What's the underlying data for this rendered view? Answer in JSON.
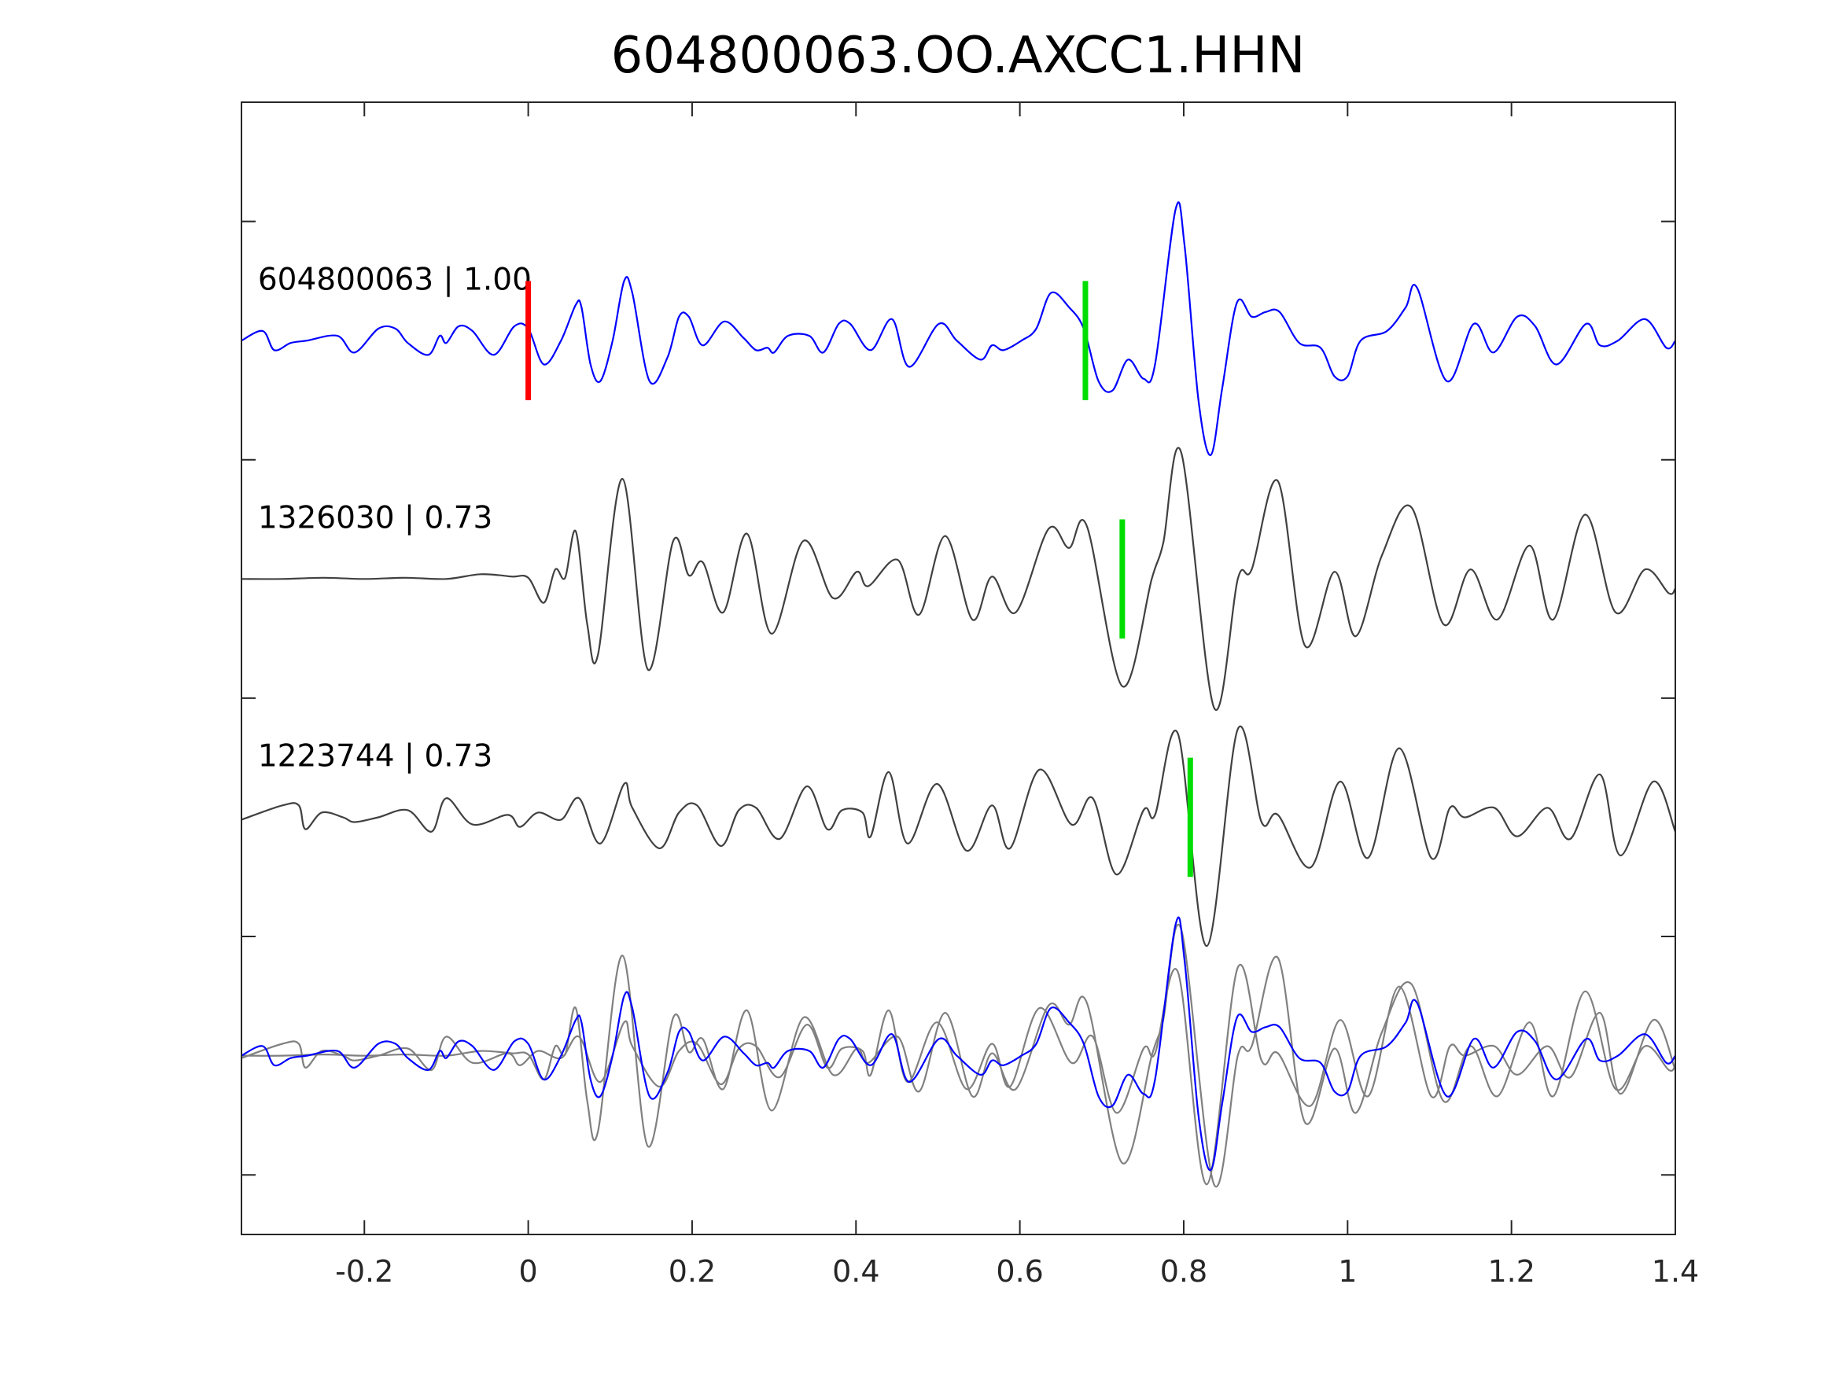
{
  "chart_data": {
    "type": "line",
    "title": "604800063.OO.AXCC1.HHN",
    "xlabel": "",
    "ylabel": "",
    "xlim": [
      -0.35,
      1.4
    ],
    "ylim": [
      -3.75,
      1.0
    ],
    "xticks": [
      -0.2,
      0,
      0.2,
      0.4,
      0.6,
      0.8,
      1,
      1.2,
      1.4
    ],
    "xtick_labels": [
      "-0.2",
      "0",
      "0.2",
      "0.4",
      "0.6",
      "0.8",
      "1",
      "1.2",
      "1.4"
    ],
    "yticks": [
      0.5,
      -0.5,
      -1.5,
      -2.5,
      -3.5
    ],
    "grid": false,
    "colors": {
      "template": "#0000ff",
      "match": "#404040",
      "overlay_match": "#808080",
      "pick_p": "#ff0000",
      "pick_s": "#00dd00"
    },
    "series": [
      {
        "name": "604800063",
        "label": "604800063 | 1.00",
        "offset": 0,
        "role": "template",
        "picks": [
          {
            "t": 0,
            "color": "#ff0000"
          },
          {
            "t": 0.68,
            "color": "#00dd00"
          }
        ],
        "points": [
          [
            -0.35,
            0
          ],
          [
            -0.324,
            0.04
          ],
          [
            -0.31,
            -0.04
          ],
          [
            -0.29,
            -0.01
          ],
          [
            -0.27,
            0
          ],
          [
            -0.233,
            0.02
          ],
          [
            -0.212,
            -0.05
          ],
          [
            -0.183,
            0.05
          ],
          [
            -0.162,
            0.05
          ],
          [
            -0.147,
            -0.01
          ],
          [
            -0.122,
            -0.06
          ],
          [
            -0.108,
            0.02
          ],
          [
            -0.1,
            -0.01
          ],
          [
            -0.085,
            0.06
          ],
          [
            -0.068,
            0.04
          ],
          [
            -0.042,
            -0.06
          ],
          [
            -0.017,
            0.06
          ],
          [
            0,
            0.05
          ],
          [
            0.019,
            -0.1
          ],
          [
            0.04,
            0
          ],
          [
            0.058,
            0.15
          ],
          [
            0.065,
            0.14
          ],
          [
            0.076,
            -0.1
          ],
          [
            0.088,
            -0.17
          ],
          [
            0.103,
            0
          ],
          [
            0.117,
            0.25
          ],
          [
            0.127,
            0.2
          ],
          [
            0.148,
            -0.17
          ],
          [
            0.17,
            -0.07
          ],
          [
            0.184,
            0.1
          ],
          [
            0.196,
            0.1
          ],
          [
            0.213,
            -0.02
          ],
          [
            0.239,
            0.08
          ],
          [
            0.263,
            0.01
          ],
          [
            0.278,
            -0.04
          ],
          [
            0.292,
            -0.03
          ],
          [
            0.3,
            -0.05
          ],
          [
            0.317,
            0.02
          ],
          [
            0.343,
            0.02
          ],
          [
            0.36,
            -0.05
          ],
          [
            0.379,
            0.07
          ],
          [
            0.393,
            0.07
          ],
          [
            0.418,
            -0.04
          ],
          [
            0.444,
            0.09
          ],
          [
            0.465,
            -0.11
          ],
          [
            0.501,
            0.07
          ],
          [
            0.523,
            0
          ],
          [
            0.552,
            -0.08
          ],
          [
            0.566,
            -0.02
          ],
          [
            0.58,
            -0.04
          ],
          [
            0.602,
            0
          ],
          [
            0.62,
            0.05
          ],
          [
            0.638,
            0.2
          ],
          [
            0.66,
            0.14
          ],
          [
            0.678,
            0.05
          ],
          [
            0.696,
            -0.17
          ],
          [
            0.713,
            -0.21
          ],
          [
            0.732,
            -0.08
          ],
          [
            0.751,
            -0.16
          ],
          [
            0.765,
            -0.1
          ],
          [
            0.79,
            0.55
          ],
          [
            0.801,
            0.4
          ],
          [
            0.818,
            -0.25
          ],
          [
            0.833,
            -0.48
          ],
          [
            0.847,
            -0.2
          ],
          [
            0.865,
            0.16
          ],
          [
            0.883,
            0.1
          ],
          [
            0.9,
            0.12
          ],
          [
            0.917,
            0.12
          ],
          [
            0.941,
            -0.01
          ],
          [
            0.967,
            -0.03
          ],
          [
            0.984,
            -0.15
          ],
          [
            1.0,
            -0.15
          ],
          [
            1.016,
            0
          ],
          [
            1.048,
            0.04
          ],
          [
            1.071,
            0.14
          ],
          [
            1.085,
            0.22
          ],
          [
            1.121,
            -0.17
          ],
          [
            1.154,
            0.07
          ],
          [
            1.178,
            -0.05
          ],
          [
            1.207,
            0.1
          ],
          [
            1.229,
            0.06
          ],
          [
            1.255,
            -0.1
          ],
          [
            1.291,
            0.07
          ],
          [
            1.308,
            -0.02
          ],
          [
            1.33,
            0
          ],
          [
            1.363,
            0.09
          ],
          [
            1.389,
            -0.03
          ],
          [
            1.4,
            0
          ]
        ]
      },
      {
        "name": "1326030",
        "label": "1326030 | 0.73",
        "offset": -1,
        "role": "match",
        "picks": [
          {
            "t": 0.725,
            "color": "#00dd00"
          }
        ],
        "points": [
          [
            -0.35,
            0
          ],
          [
            -0.3,
            0
          ],
          [
            -0.25,
            0.005
          ],
          [
            -0.2,
            0
          ],
          [
            -0.15,
            0.005
          ],
          [
            -0.1,
            0
          ],
          [
            -0.058,
            0.02
          ],
          [
            -0.02,
            0.01
          ],
          [
            0,
            0.005
          ],
          [
            0.019,
            -0.1
          ],
          [
            0.033,
            0.04
          ],
          [
            0.045,
            0.005
          ],
          [
            0.058,
            0.2
          ],
          [
            0.072,
            -0.19
          ],
          [
            0.085,
            -0.32
          ],
          [
            0.115,
            0.42
          ],
          [
            0.146,
            -0.38
          ],
          [
            0.177,
            0.16
          ],
          [
            0.196,
            0.015
          ],
          [
            0.213,
            0.07
          ],
          [
            0.238,
            -0.14
          ],
          [
            0.267,
            0.19
          ],
          [
            0.297,
            -0.23
          ],
          [
            0.336,
            0.16
          ],
          [
            0.372,
            -0.08
          ],
          [
            0.401,
            0.03
          ],
          [
            0.415,
            -0.03
          ],
          [
            0.451,
            0.08
          ],
          [
            0.477,
            -0.15
          ],
          [
            0.509,
            0.18
          ],
          [
            0.542,
            -0.17
          ],
          [
            0.566,
            0.01
          ],
          [
            0.595,
            -0.14
          ],
          [
            0.635,
            0.21
          ],
          [
            0.66,
            0.13
          ],
          [
            0.682,
            0.22
          ],
          [
            0.725,
            -0.45
          ],
          [
            0.761,
            0
          ],
          [
            0.775,
            0.15
          ],
          [
            0.797,
            0.53
          ],
          [
            0.837,
            -0.54
          ],
          [
            0.866,
            0
          ],
          [
            0.883,
            0.04
          ],
          [
            0.915,
            0.41
          ],
          [
            0.948,
            -0.28
          ],
          [
            0.984,
            0.03
          ],
          [
            1.01,
            -0.24
          ],
          [
            1.042,
            0.1
          ],
          [
            1.078,
            0.3
          ],
          [
            1.117,
            -0.19
          ],
          [
            1.15,
            0.04
          ],
          [
            1.183,
            -0.17
          ],
          [
            1.222,
            0.14
          ],
          [
            1.251,
            -0.17
          ],
          [
            1.29,
            0.27
          ],
          [
            1.327,
            -0.14
          ],
          [
            1.363,
            0.04
          ],
          [
            1.392,
            -0.06
          ],
          [
            1.4,
            -0.04
          ]
        ]
      },
      {
        "name": "1223744",
        "label": "1223744 | 0.73",
        "offset": -2,
        "role": "match",
        "picks": [
          {
            "t": 0.808,
            "color": "#00dd00"
          }
        ],
        "points": [
          [
            -0.35,
            -0.01
          ],
          [
            -0.3,
            0.05
          ],
          [
            -0.28,
            0.05
          ],
          [
            -0.272,
            -0.05
          ],
          [
            -0.252,
            0.02
          ],
          [
            -0.226,
            0
          ],
          [
            -0.212,
            -0.02
          ],
          [
            -0.183,
            0
          ],
          [
            -0.147,
            0.03
          ],
          [
            -0.118,
            -0.06
          ],
          [
            -0.1,
            0.08
          ],
          [
            -0.068,
            -0.03
          ],
          [
            -0.025,
            0.01
          ],
          [
            -0.01,
            -0.04
          ],
          [
            0.012,
            0.02
          ],
          [
            0.04,
            -0.01
          ],
          [
            0.062,
            0.08
          ],
          [
            0.088,
            -0.11
          ],
          [
            0.117,
            0.14
          ],
          [
            0.127,
            0.04
          ],
          [
            0.16,
            -0.13
          ],
          [
            0.184,
            0.02
          ],
          [
            0.206,
            0.05
          ],
          [
            0.235,
            -0.12
          ],
          [
            0.257,
            0.03
          ],
          [
            0.278,
            0.04
          ],
          [
            0.307,
            -0.09
          ],
          [
            0.34,
            0.13
          ],
          [
            0.365,
            -0.05
          ],
          [
            0.383,
            0.03
          ],
          [
            0.408,
            0.02
          ],
          [
            0.418,
            -0.08
          ],
          [
            0.44,
            0.19
          ],
          [
            0.463,
            -0.11
          ],
          [
            0.499,
            0.14
          ],
          [
            0.535,
            -0.14
          ],
          [
            0.566,
            0.05
          ],
          [
            0.588,
            -0.13
          ],
          [
            0.624,
            0.2
          ],
          [
            0.663,
            -0.03
          ],
          [
            0.689,
            0.08
          ],
          [
            0.718,
            -0.24
          ],
          [
            0.751,
            0.03
          ],
          [
            0.765,
            0.01
          ],
          [
            0.793,
            0.35
          ],
          [
            0.828,
            -0.54
          ],
          [
            0.866,
            0.37
          ],
          [
            0.895,
            -0.02
          ],
          [
            0.915,
            0.01
          ],
          [
            0.955,
            -0.21
          ],
          [
            0.991,
            0.15
          ],
          [
            1.025,
            -0.17
          ],
          [
            1.063,
            0.29
          ],
          [
            1.102,
            -0.17
          ],
          [
            1.125,
            0.04
          ],
          [
            1.143,
            0
          ],
          [
            1.179,
            0.04
          ],
          [
            1.207,
            -0.08
          ],
          [
            1.244,
            0.04
          ],
          [
            1.272,
            -0.09
          ],
          [
            1.308,
            0.18
          ],
          [
            1.333,
            -0.16
          ],
          [
            1.373,
            0.15
          ],
          [
            1.4,
            -0.06
          ]
        ]
      }
    ],
    "overlay": {
      "offset": -3,
      "description_series": [
        "604800063",
        "1326030",
        "1223744"
      ]
    }
  }
}
